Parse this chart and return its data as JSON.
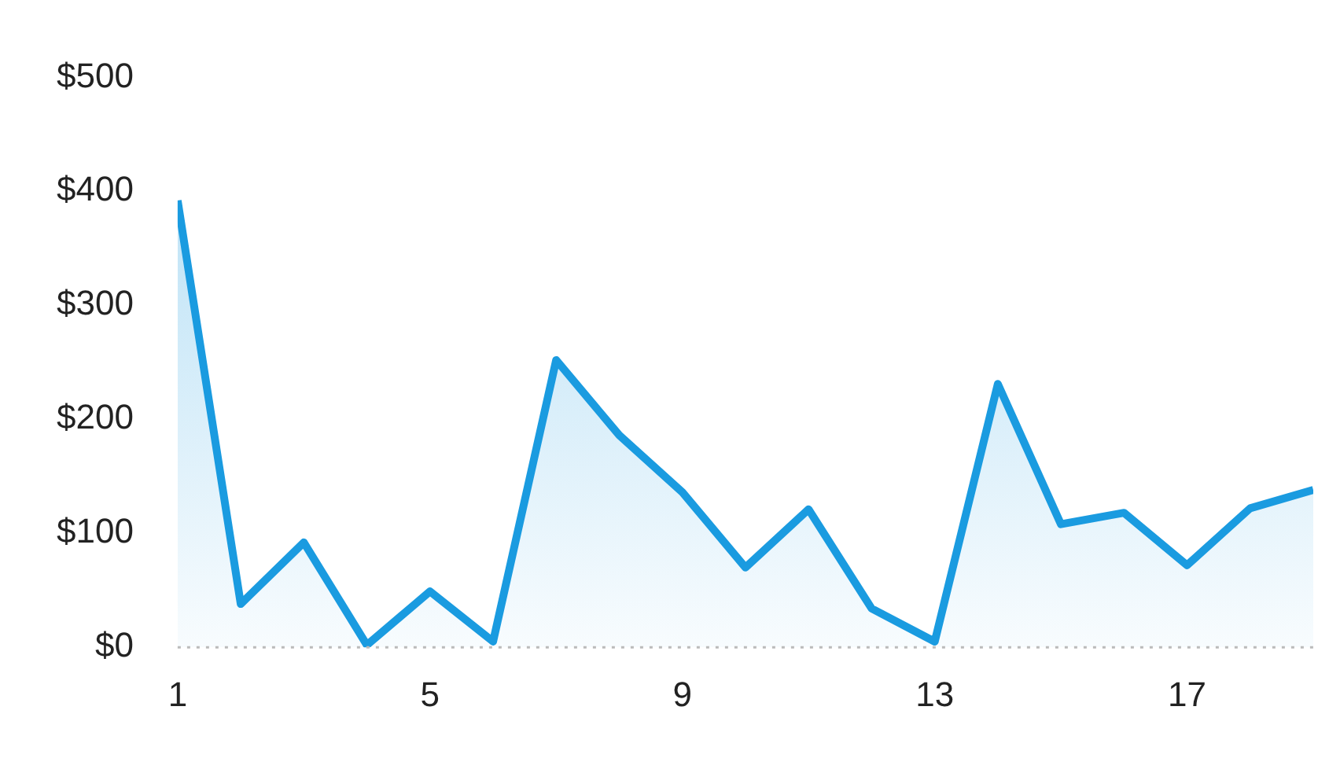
{
  "chart_data": {
    "type": "area",
    "x": [
      1,
      2,
      3,
      4,
      5,
      6,
      7,
      8,
      9,
      10,
      11,
      12,
      13,
      14,
      15,
      16,
      17,
      18,
      19
    ],
    "series": [
      {
        "color": "#1a9be0",
        "values": [
          392,
          38,
          92,
          2,
          49,
          5,
          252,
          186,
          136,
          70,
          121,
          34,
          5,
          231,
          108,
          118,
          72,
          122,
          138
        ]
      }
    ],
    "xlim": [
      1,
      19
    ],
    "xticks": [
      1,
      5,
      9,
      13,
      17
    ],
    "ylim": [
      0,
      500
    ],
    "yticks": [
      {
        "value": 0,
        "label": "$0"
      },
      {
        "value": 100,
        "label": "$100"
      },
      {
        "value": 200,
        "label": "$200"
      },
      {
        "value": 300,
        "label": "$300"
      },
      {
        "value": 400,
        "label": "$400"
      },
      {
        "value": 500,
        "label": "$500"
      }
    ],
    "ref_lines": [
      {
        "axis": "y",
        "value": 0,
        "color": "#bbbbbb",
        "line_style": "dotted"
      }
    ],
    "grid": false,
    "legend": false,
    "marker": "none",
    "line_style": "solid"
  }
}
